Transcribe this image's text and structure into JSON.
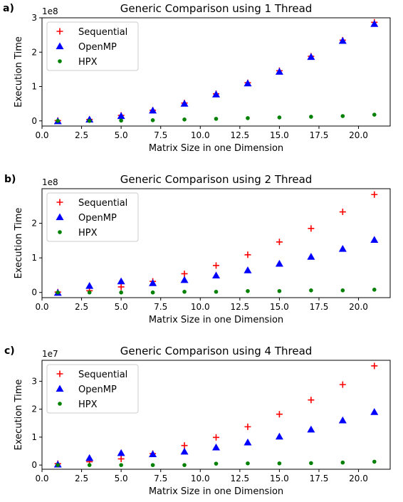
{
  "chart_data": [
    {
      "type": "scatter",
      "panel_label": "a)",
      "title": "Generic Comparison using 1 Thread",
      "xlabel": "Matrix Size in one Dimension",
      "ylabel": "Execution Time",
      "offset_text": "1e8",
      "xlim": [
        0,
        22
      ],
      "ylim": [
        -0.15,
        3.0
      ],
      "x_ticks": [
        0,
        2.5,
        5,
        7.5,
        10,
        12.5,
        15,
        17.5,
        20
      ],
      "x_tick_labels": [
        "0.0",
        "2.5",
        "5.0",
        "7.5",
        "10.0",
        "12.5",
        "15.0",
        "17.5",
        "20.0"
      ],
      "y_ticks": [
        0,
        1,
        2,
        3
      ],
      "y_tick_labels": [
        "0",
        "1",
        "2",
        "3"
      ],
      "legend_position": "top-left",
      "x": [
        1,
        3,
        5,
        7,
        9,
        11,
        13,
        15,
        17,
        19,
        21
      ],
      "series": [
        {
          "name": "Sequential",
          "marker": "plus",
          "color": "#ff0000",
          "values": [
            0.01,
            0.04,
            0.16,
            0.31,
            0.52,
            0.79,
            1.11,
            1.46,
            1.88,
            2.35,
            2.87
          ]
        },
        {
          "name": "OpenMP",
          "marker": "triangle",
          "color": "#0000ff",
          "values": [
            -0.01,
            0.04,
            0.14,
            0.3,
            0.5,
            0.77,
            1.09,
            1.43,
            1.86,
            2.33,
            2.82
          ]
        },
        {
          "name": "HPX",
          "marker": "circle",
          "color": "#008000",
          "values": [
            0.0,
            0.0,
            0.01,
            0.02,
            0.04,
            0.06,
            0.08,
            0.1,
            0.12,
            0.14,
            0.18
          ]
        }
      ]
    },
    {
      "type": "scatter",
      "panel_label": "b)",
      "title": "Generic Comparison using 2 Thread",
      "xlabel": "Matrix Size in one Dimension",
      "ylabel": "Execution Time",
      "offset_text": "1e8",
      "xlim": [
        0,
        22
      ],
      "ylim": [
        -0.15,
        3.0
      ],
      "x_ticks": [
        0,
        2.5,
        5,
        7.5,
        10,
        12.5,
        15,
        17.5,
        20
      ],
      "x_tick_labels": [
        "0.0",
        "2.5",
        "5.0",
        "7.5",
        "10.0",
        "12.5",
        "15.0",
        "17.5",
        "20.0"
      ],
      "y_ticks": [
        0,
        1,
        2
      ],
      "y_tick_labels": [
        "0",
        "1",
        "2"
      ],
      "legend_position": "top-left",
      "x": [
        1,
        3,
        5,
        7,
        9,
        11,
        13,
        15,
        17,
        19,
        21
      ],
      "series": [
        {
          "name": "Sequential",
          "marker": "plus",
          "color": "#ff0000",
          "values": [
            0.01,
            0.05,
            0.16,
            0.32,
            0.54,
            0.78,
            1.09,
            1.46,
            1.85,
            2.33,
            2.83
          ]
        },
        {
          "name": "OpenMP",
          "marker": "triangle",
          "color": "#0000ff",
          "values": [
            -0.01,
            0.19,
            0.32,
            0.27,
            0.36,
            0.49,
            0.64,
            0.83,
            1.03,
            1.26,
            1.52
          ]
        },
        {
          "name": "HPX",
          "marker": "circle",
          "color": "#008000",
          "values": [
            0.0,
            0.0,
            0.0,
            0.0,
            0.02,
            0.02,
            0.04,
            0.04,
            0.06,
            0.06,
            0.08
          ]
        }
      ]
    },
    {
      "type": "scatter",
      "panel_label": "c)",
      "title": "Generic Comparison using 4 Thread",
      "xlabel": "Matrix Size in one Dimension",
      "ylabel": "Execution Time",
      "offset_text": "1e7",
      "xlim": [
        0,
        22
      ],
      "ylim": [
        -0.15,
        3.75
      ],
      "x_ticks": [
        0,
        2.5,
        5,
        7.5,
        10,
        12.5,
        15,
        17.5,
        20
      ],
      "x_tick_labels": [
        "0.0",
        "2.5",
        "5.0",
        "7.5",
        "10.0",
        "12.5",
        "15.0",
        "17.5",
        "20.0"
      ],
      "y_ticks": [
        0,
        1,
        2,
        3
      ],
      "y_tick_labels": [
        "0",
        "1",
        "2",
        "3"
      ],
      "legend_position": "top-left",
      "x": [
        1,
        3,
        5,
        7,
        9,
        11,
        13,
        15,
        17,
        19,
        21
      ],
      "series": [
        {
          "name": "Sequential",
          "marker": "plus",
          "color": "#ff0000",
          "values": [
            0.05,
            0.12,
            0.22,
            0.41,
            0.7,
            0.99,
            1.37,
            1.82,
            2.33,
            2.88,
            3.55
          ]
        },
        {
          "name": "OpenMP",
          "marker": "triangle",
          "color": "#0000ff",
          "values": [
            0.02,
            0.25,
            0.43,
            0.39,
            0.48,
            0.63,
            0.81,
            1.02,
            1.27,
            1.6,
            1.9
          ]
        },
        {
          "name": "HPX",
          "marker": "circle",
          "color": "#008000",
          "values": [
            0.0,
            0.0,
            0.0,
            0.0,
            0.0,
            0.05,
            0.06,
            0.06,
            0.07,
            0.09,
            0.12
          ]
        }
      ]
    }
  ]
}
